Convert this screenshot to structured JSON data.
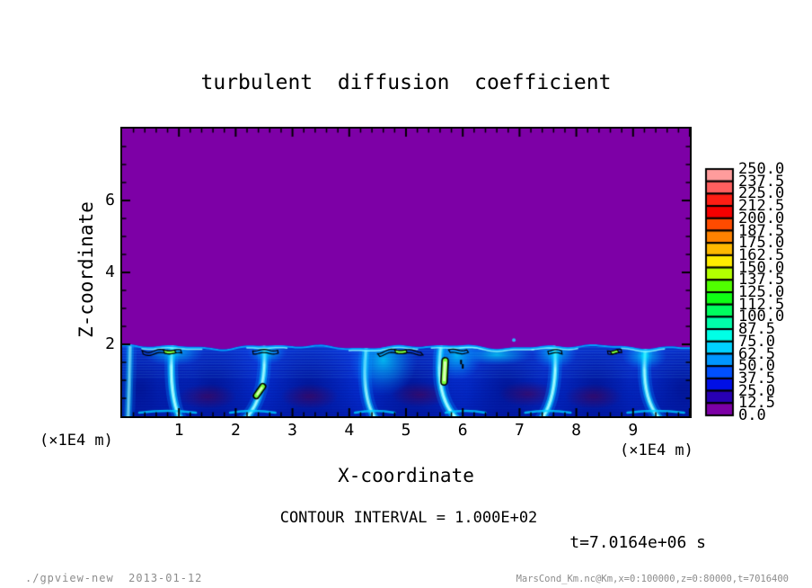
{
  "title": "turbulent  diffusion  coefficient",
  "axes": {
    "x_label": "X-coordinate",
    "y_label": "Z-coordinate",
    "unit_left": "(×1E4 m)",
    "unit_right": "(×1E4 m)",
    "x_ticks": [
      "1",
      "2",
      "3",
      "4",
      "5",
      "6",
      "7",
      "8",
      "9"
    ],
    "y_ticks": [
      "2",
      "4",
      "6"
    ]
  },
  "annotations": {
    "contour_interval": "CONTOUR INTERVAL = 1.000E+02",
    "time_label": "t=7.0164e+06 s"
  },
  "footer": {
    "left": "./gpview-new  2013-01-12",
    "right": "MarsCond_Km.nc@Km,x=0:100000,z=0:80000,t=7016400"
  },
  "colorbar": {
    "labels": [
      "250.0",
      "237.5",
      "225.0",
      "212.5",
      "200.0",
      "187.5",
      "175.0",
      "162.5",
      "150.0",
      "137.5",
      "125.0",
      "112.5",
      "100.0",
      "87.5",
      "75.0",
      "62.5",
      "50.0",
      "37.5",
      "25.0",
      "12.5",
      "0.0"
    ],
    "colors_top_to_bottom": [
      "#ff9c9c",
      "#ff5f5f",
      "#ff1e14",
      "#f50000",
      "#ff4b00",
      "#ff8200",
      "#ffb900",
      "#ffeb00",
      "#b4ff00",
      "#50ff00",
      "#0fff14",
      "#00ff5f",
      "#00ffaa",
      "#00ffe6",
      "#00d2ff",
      "#0096ff",
      "#0050ff",
      "#000fe6",
      "#2800b4",
      "#7d00a6"
    ]
  },
  "chart_data": {
    "type": "heatmap",
    "title": "turbulent diffusion coefficient",
    "xlabel": "X-coordinate (x1E4 m)",
    "ylabel": "Z-coordinate (x1E4 m)",
    "xlim": [
      0,
      10
    ],
    "ylim": [
      0,
      8
    ],
    "x_major_ticks": [
      1,
      2,
      3,
      4,
      5,
      6,
      7,
      8,
      9
    ],
    "x_minor_step": 0.2,
    "y_major_ticks": [
      2,
      4,
      6
    ],
    "y_minor_step": 0.5,
    "colorbar_min": 0.0,
    "colorbar_max": 250.0,
    "colorbar_step": 12.5,
    "contour_interval": 100.0,
    "time_seconds": "7.0164e+06",
    "field_description": "Turbulent diffusion coefficient near 0 (purple, 0-12.5 band) above z~2e4 m; convective boundary layer below z~2e4 m with values mostly 12.5-100 (blue to cyan plumes) and isolated pockets above 100 (green, outlined by the 100-contour).",
    "boundary_layer_top_z": 1.94,
    "render_colors": {
      "background_field": "#7d00a6",
      "bl_base_blue": "#0534d8",
      "plume_cyan": "#00c8ff",
      "plume_core": "#bef7ff",
      "green_pocket": "#78ff3c",
      "contour_line": "#000000",
      "dark_core": "rgba(88,0,72,0.5)"
    },
    "features": {
      "plumes": [
        {
          "xb": 0.1,
          "xt": 0.14,
          "bend": 0.0,
          "s": 0.55
        },
        {
          "xb": 1.05,
          "xt": 0.88,
          "bend": -0.15,
          "s": 1.0
        },
        {
          "xb": 2.12,
          "xt": 2.5,
          "bend": 0.25,
          "s": 0.9
        },
        {
          "xb": 4.5,
          "xt": 4.3,
          "bend": -0.2,
          "s": 0.8
        },
        {
          "xb": 5.95,
          "xt": 5.62,
          "bend": -0.3,
          "s": 1.0
        },
        {
          "xb": 7.35,
          "xt": 7.62,
          "bend": 0.2,
          "s": 0.95
        },
        {
          "xb": 9.52,
          "xt": 9.22,
          "bend": -0.25,
          "s": 0.9
        }
      ],
      "top_fans": [
        {
          "x": 0.9,
          "w": 1.1,
          "h": 8
        },
        {
          "x": 2.55,
          "w": 0.7,
          "h": 7
        },
        {
          "x": 4.6,
          "w": 1.2,
          "h": 20
        },
        {
          "x": 5.9,
          "w": 0.9,
          "h": 14
        },
        {
          "x": 6.6,
          "w": 1.3,
          "h": 6
        },
        {
          "x": 7.62,
          "w": 0.8,
          "h": 9
        },
        {
          "x": 9.2,
          "w": 0.8,
          "h": 8
        }
      ],
      "cells": [
        {
          "x": 0.3
        },
        {
          "x": 1.6
        },
        {
          "x": 3.3
        },
        {
          "x": 5.1
        },
        {
          "x": 6.8
        },
        {
          "x": 8.35
        },
        {
          "x": 9.9
        }
      ],
      "dark_spots": [
        {
          "x": 1.5,
          "z": 0.55
        },
        {
          "x": 3.3,
          "z": 0.55
        },
        {
          "x": 5.25,
          "z": 0.6
        },
        {
          "x": 7.15,
          "z": 0.62
        },
        {
          "x": 8.3,
          "z": 0.55
        }
      ],
      "green_blobs": [
        {
          "x": 2.42,
          "z": 0.7,
          "len": 0.42,
          "angle": 55,
          "w": 0.1
        },
        {
          "x": 5.68,
          "z": 1.25,
          "len": 0.68,
          "angle": 87,
          "w": 0.11
        }
      ],
      "contour_flecks": [
        {
          "x1": 0.35,
          "x2": 1.05
        },
        {
          "x1": 2.3,
          "x2": 2.75
        },
        {
          "x1": 4.5,
          "x2": 5.3
        },
        {
          "x1": 5.75,
          "x2": 6.1
        },
        {
          "x1": 7.5,
          "x2": 7.75
        },
        {
          "x1": 8.55,
          "x2": 8.8
        }
      ],
      "green_flecks": [
        {
          "x1": 0.72,
          "x2": 0.95
        },
        {
          "x1": 4.8,
          "x2": 5.02
        },
        {
          "x1": 8.6,
          "x2": 8.75
        }
      ],
      "contour_dots": [
        {
          "x": 5.97,
          "z": 1.52
        },
        {
          "x": 6.0,
          "z": 1.4
        }
      ],
      "specks": [
        {
          "x": 6.9,
          "z": 2.12
        }
      ],
      "bottom_streaks": [
        {
          "x1": 0.3,
          "x2": 1.3
        },
        {
          "x1": 1.9,
          "x2": 2.7
        },
        {
          "x1": 4.1,
          "x2": 4.8
        },
        {
          "x1": 5.7,
          "x2": 6.4
        },
        {
          "x1": 7.1,
          "x2": 7.9
        },
        {
          "x1": 8.9,
          "x2": 9.9
        }
      ]
    }
  }
}
